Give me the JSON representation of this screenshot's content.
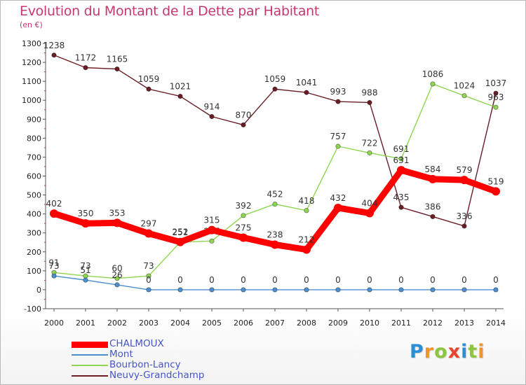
{
  "header": {
    "title": "Evolution du Montant de la Dette par Habitant",
    "unit": "(en €)"
  },
  "chart_data": {
    "type": "line",
    "title": "Evolution du Montant de la Dette par Habitant",
    "ylabel": "(en €)",
    "xlabel": "",
    "ylim": [
      -100,
      1300
    ],
    "yticks": [
      -100,
      0,
      100,
      200,
      300,
      400,
      500,
      600,
      700,
      800,
      900,
      1000,
      1100,
      1200,
      1300
    ],
    "x": [
      2000,
      2001,
      2002,
      2003,
      2004,
      2005,
      2006,
      2007,
      2008,
      2009,
      2010,
      2011,
      2012,
      2013,
      2014
    ],
    "grid": false,
    "legend": "bottom-left",
    "series": [
      {
        "name": "Neuvy-Grandchamp",
        "color": "#6b1d25",
        "values": [
          1238,
          1172,
          1165,
          1059,
          1021,
          914,
          870,
          1059,
          1041,
          993,
          988,
          435,
          386,
          336,
          1037
        ]
      },
      {
        "name": "Bourbon-Lancy",
        "color": "#8ed651",
        "values": [
          91,
          73,
          60,
          73,
          251,
          257,
          392,
          452,
          418,
          757,
          722,
          691,
          1086,
          1024,
          963
        ]
      },
      {
        "name": "Mont",
        "color": "#4d8fd0",
        "values": [
          73,
          51,
          26,
          0,
          0,
          0,
          0,
          0,
          0,
          0,
          0,
          0,
          0,
          0,
          0
        ]
      },
      {
        "name": "CHALMOUX",
        "color": "#ff0000",
        "values": [
          402,
          350,
          353,
          297,
          252,
          315,
          275,
          238,
          212,
          432,
          404,
          631,
          584,
          579,
          519
        ]
      }
    ]
  },
  "legend": {
    "items": [
      {
        "label": "CHALMOUX",
        "color": "#ff0000"
      },
      {
        "label": "Mont",
        "color": "#4d8fd0"
      },
      {
        "label": "Bourbon-Lancy",
        "color": "#8ed651"
      },
      {
        "label": "Neuvy-Grandchamp",
        "color": "#6b1d25"
      }
    ]
  },
  "logo": {
    "text": "Proxiti",
    "letters": [
      "P",
      "r",
      "o",
      "x",
      "i",
      "t",
      "i"
    ],
    "colors": [
      "#2b8fd6",
      "#f0932a",
      "#8cc63f",
      "#e8452c",
      "#2b8fd6",
      "#8cc63f",
      "#f0932a"
    ]
  }
}
